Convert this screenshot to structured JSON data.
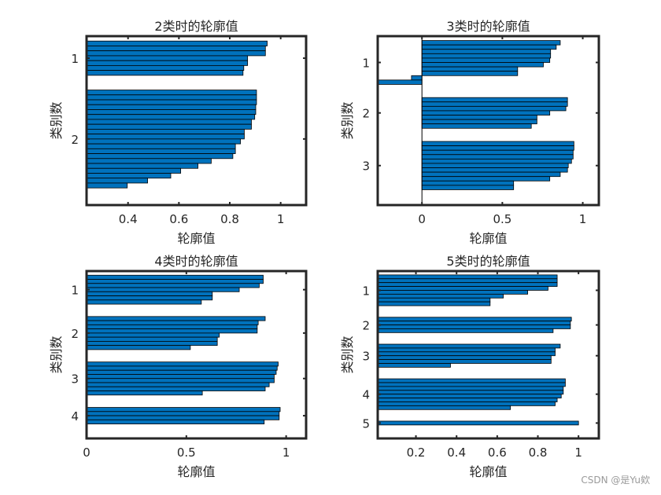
{
  "figure": {
    "watermark": "CSDN @是Yu欸",
    "bar_color": "#0072BD",
    "edge_color": "#000000",
    "axes_color": "#262626"
  },
  "chart_data": [
    {
      "type": "bar",
      "orientation": "horizontal",
      "title": "2类时的轮廓值",
      "xlabel": "轮廓值",
      "ylabel": "类别数",
      "xlim": [
        0.237,
        1.1
      ],
      "xticks": [
        0.4,
        0.6,
        0.8,
        1
      ],
      "xtick_labels": [
        "0.4",
        "0.6",
        "0.8",
        "1"
      ],
      "ytick_labels": [
        "1",
        "2"
      ],
      "grid": false,
      "clusters": [
        {
          "label": "1",
          "values": [
            0.947,
            0.94,
            0.94,
            0.87,
            0.87,
            0.855,
            0.852
          ]
        },
        {
          "label": "2",
          "values": [
            0.905,
            0.905,
            0.905,
            0.902,
            0.902,
            0.898,
            0.885,
            0.885,
            0.857,
            0.857,
            0.842,
            0.822,
            0.822,
            0.812,
            0.727,
            0.675,
            0.607,
            0.568,
            0.477,
            0.397
          ]
        }
      ]
    },
    {
      "type": "bar",
      "orientation": "horizontal",
      "title": "3类时的轮廓值",
      "xlabel": "轮廓值",
      "ylabel": "类别数",
      "xlim": [
        -0.275,
        1.1
      ],
      "xticks": [
        0,
        0.5,
        1
      ],
      "xtick_labels": [
        "0",
        "0.5",
        "1"
      ],
      "ytick_labels": [
        "1",
        "2",
        "3"
      ],
      "grid": false,
      "clusters": [
        {
          "label": "1",
          "values": [
            0.86,
            0.835,
            0.8,
            0.8,
            0.795,
            0.755,
            0.595,
            0.595,
            -0.065,
            -0.27
          ]
        },
        {
          "label": "2",
          "values": [
            0.905,
            0.905,
            0.895,
            0.795,
            0.715,
            0.715,
            0.68
          ]
        },
        {
          "label": "3",
          "values": [
            0.945,
            0.945,
            0.94,
            0.94,
            0.93,
            0.91,
            0.905,
            0.86,
            0.795,
            0.57,
            0.57
          ]
        }
      ]
    },
    {
      "type": "bar",
      "orientation": "horizontal",
      "title": "4类时的轮廓值",
      "xlabel": "轮廓值",
      "ylabel": "类别数",
      "xlim": [
        0,
        1.1
      ],
      "xticks": [
        0,
        0.5,
        1
      ],
      "xtick_labels": [
        "0",
        "0.5",
        "1"
      ],
      "ytick_labels": [
        "1",
        "2",
        "3",
        "4"
      ],
      "grid": false,
      "clusters": [
        {
          "label": "1",
          "values": [
            0.885,
            0.885,
            0.865,
            0.765,
            0.63,
            0.63,
            0.575
          ]
        },
        {
          "label": "2",
          "values": [
            0.895,
            0.86,
            0.855,
            0.855,
            0.665,
            0.655,
            0.655,
            0.52
          ]
        },
        {
          "label": "3",
          "values": [
            0.96,
            0.955,
            0.95,
            0.94,
            0.94,
            0.915,
            0.895,
            0.58
          ]
        },
        {
          "label": "4",
          "values": [
            0.97,
            0.965,
            0.965,
            0.89
          ]
        }
      ]
    },
    {
      "type": "bar",
      "orientation": "horizontal",
      "title": "5类时的轮廓值",
      "xlabel": "轮廓值",
      "ylabel": "类别数",
      "xlim": [
        0.012,
        1.1
      ],
      "xticks": [
        0.2,
        0.4,
        0.6,
        0.8,
        1
      ],
      "xtick_labels": [
        "0.2",
        "0.4",
        "0.6",
        "0.8",
        "1"
      ],
      "ytick_labels": [
        "1",
        "2",
        "3",
        "4",
        "5"
      ],
      "grid": false,
      "clusters": [
        {
          "label": "1",
          "values": [
            0.895,
            0.895,
            0.895,
            0.85,
            0.75,
            0.63,
            0.565,
            0.565
          ]
        },
        {
          "label": "2",
          "values": [
            0.965,
            0.96,
            0.96,
            0.875
          ]
        },
        {
          "label": "3",
          "values": [
            0.91,
            0.885,
            0.885,
            0.865,
            0.865,
            0.37
          ]
        },
        {
          "label": "4",
          "values": [
            0.935,
            0.935,
            0.925,
            0.925,
            0.915,
            0.895,
            0.885,
            0.665
          ]
        },
        {
          "label": "5",
          "values": [
            1.0
          ]
        }
      ]
    }
  ]
}
